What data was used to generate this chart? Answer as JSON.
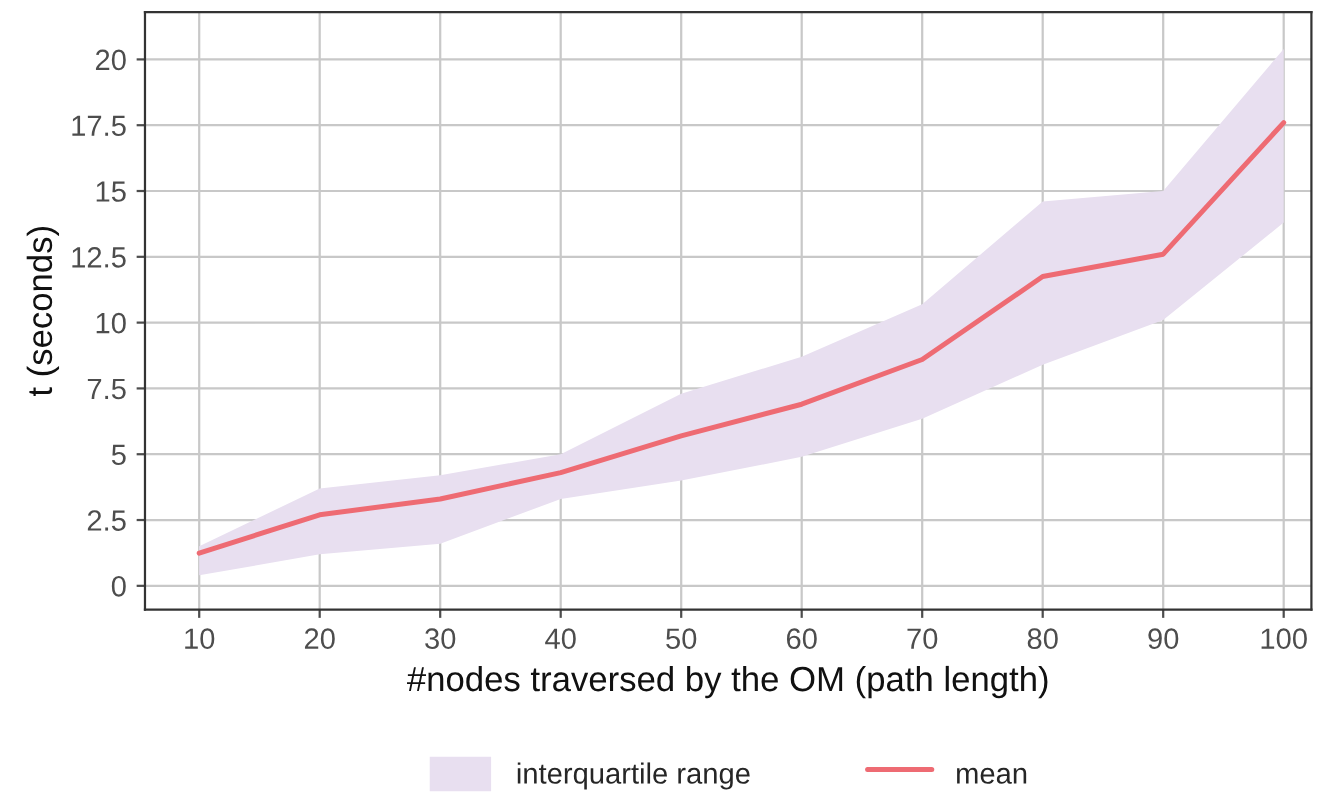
{
  "chart_data": {
    "type": "line",
    "xlabel": "#nodes traversed by the OM (path length)",
    "ylabel": "t (seconds)",
    "x": [
      10,
      20,
      30,
      40,
      50,
      60,
      70,
      80,
      90,
      100
    ],
    "series": [
      {
        "name": "mean",
        "type": "line",
        "color": "#ee6b73",
        "values": [
          1.24,
          2.7,
          3.3,
          4.3,
          5.7,
          6.9,
          8.6,
          11.75,
          12.6,
          17.6
        ],
        "lower": [
          0.4,
          1.2,
          1.6,
          3.3,
          4.0,
          4.9,
          6.35,
          8.4,
          10.1,
          13.8
        ],
        "upper": [
          1.5,
          3.7,
          4.2,
          5.0,
          7.3,
          8.7,
          10.7,
          14.6,
          15.0,
          20.4
        ]
      }
    ],
    "annotations": [
      "interquartile range"
    ],
    "xlim": [
      5.5,
      102.3
    ],
    "xticks": [
      10,
      20,
      30,
      40,
      50,
      60,
      70,
      80,
      90,
      100
    ],
    "ylim": [
      -0.9,
      21.8
    ],
    "yticks": [
      0,
      2.5,
      5,
      7.5,
      10,
      12.5,
      15,
      17.5,
      20
    ],
    "grid": true,
    "legend": "bottom",
    "line_style": "solid"
  }
}
